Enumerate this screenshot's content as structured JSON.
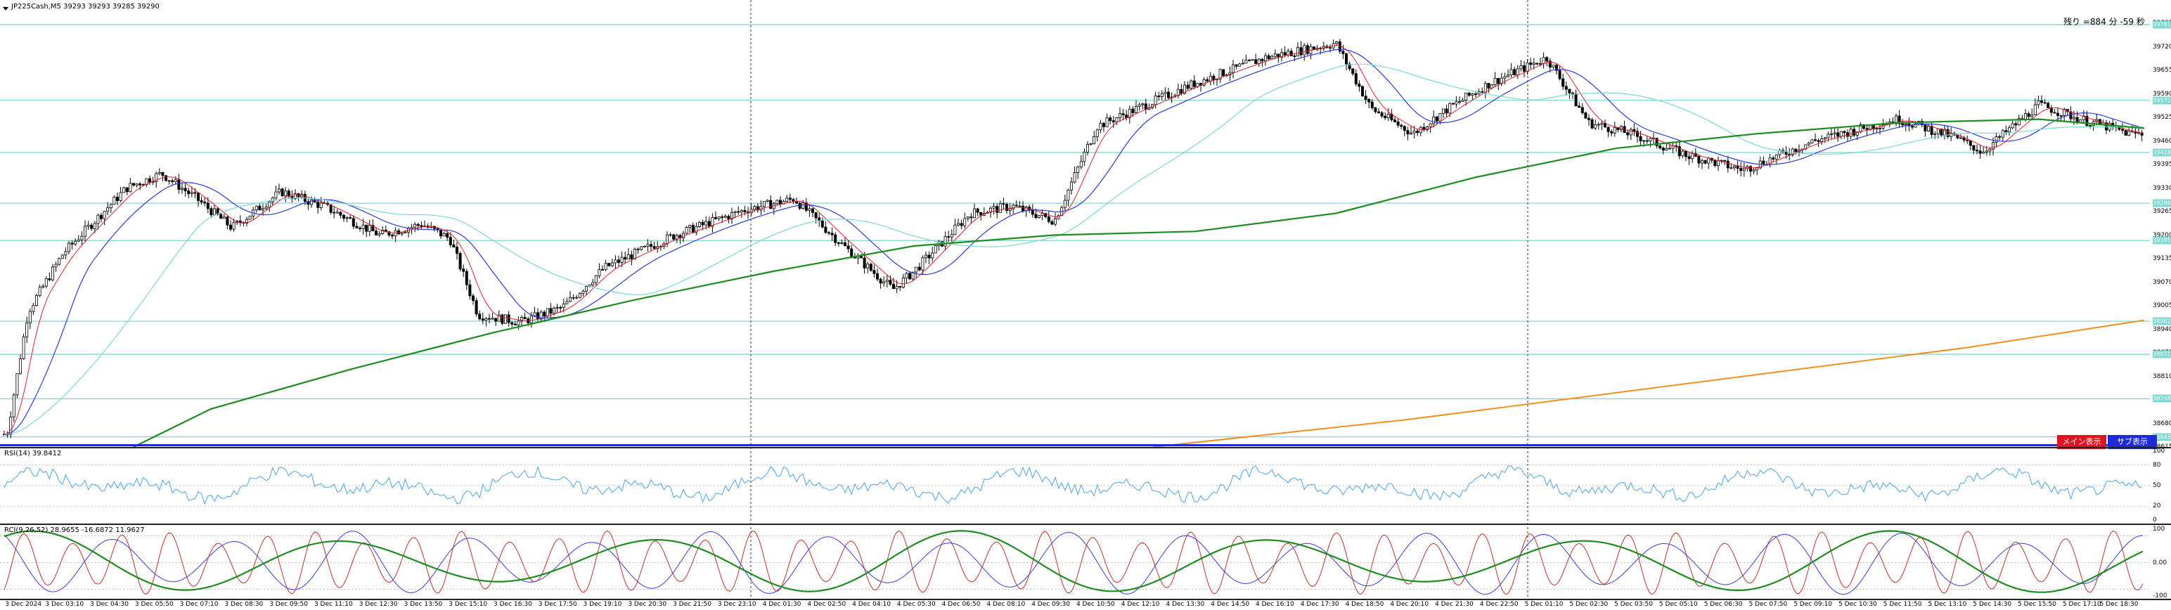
{
  "main": {
    "symbol_line": "JP225Cash,M5  39293 39293 39285 39290",
    "timer_text": "残り  =884 分  -59 秒",
    "buttons": {
      "main_label": "メイン表示",
      "sub_label": "サブ表示"
    },
    "price_axis": [
      "39785",
      "39720",
      "39655",
      "39590",
      "39525",
      "39460",
      "39395",
      "39330",
      "39265",
      "39200",
      "39135",
      "39070",
      "39005",
      "38940",
      "38875",
      "38810",
      "38745",
      "38680",
      "38615"
    ],
    "hline_tags": [
      "39781",
      "39572",
      "39428",
      "39288",
      "39185",
      "38962",
      "38871",
      "38748",
      "38643"
    ],
    "colors": {
      "hline": "#7fd7d2",
      "ma_fast": "#e0202a",
      "ma_mid": "#2a3ad8",
      "ma_slow": "#7fd7d2",
      "ma_long": "#1e8c1e",
      "ma_xlong": "#f0901e",
      "candle": "#000000"
    }
  },
  "rsi": {
    "label": "RSI(14) 39.8412",
    "axis": [
      "100",
      "80",
      "50",
      "20",
      "0"
    ]
  },
  "rci": {
    "label": "RCI(9,26,52) 28.9655 -16.6872 11.9627",
    "axis": [
      "100",
      "0.00",
      "-100"
    ]
  },
  "time_axis": [
    "3 Dec 2024",
    "3 Dec 03:10",
    "3 Dec 04:30",
    "3 Dec 05:50",
    "3 Dec 07:10",
    "3 Dec 08:30",
    "3 Dec 09:50",
    "3 Dec 11:10",
    "3 Dec 12:30",
    "3 Dec 13:50",
    "3 Dec 15:10",
    "3 Dec 16:30",
    "3 Dec 17:50",
    "3 Dec 19:10",
    "3 Dec 20:30",
    "3 Dec 21:50",
    "3 Dec 23:10",
    "4 Dec 01:30",
    "4 Dec 02:50",
    "4 Dec 04:10",
    "4 Dec 05:30",
    "4 Dec 06:50",
    "4 Dec 08:10",
    "4 Dec 09:30",
    "4 Dec 10:50",
    "4 Dec 12:10",
    "4 Dec 13:30",
    "4 Dec 14:50",
    "4 Dec 16:10",
    "4 Dec 17:30",
    "4 Dec 18:50",
    "4 Dec 20:10",
    "4 Dec 21:30",
    "4 Dec 22:50",
    "5 Dec 01:10",
    "5 Dec 02:30",
    "5 Dec 03:50",
    "5 Dec 05:10",
    "5 Dec 06:30",
    "5 Dec 07:50",
    "5 Dec 09:10",
    "5 Dec 10:30",
    "5 Dec 11:50",
    "5 Dec 13:10",
    "5 Dec 14:30",
    "5 Dec 15:50",
    "5 Dec 17:10",
    "5 Dec 18:30"
  ]
}
